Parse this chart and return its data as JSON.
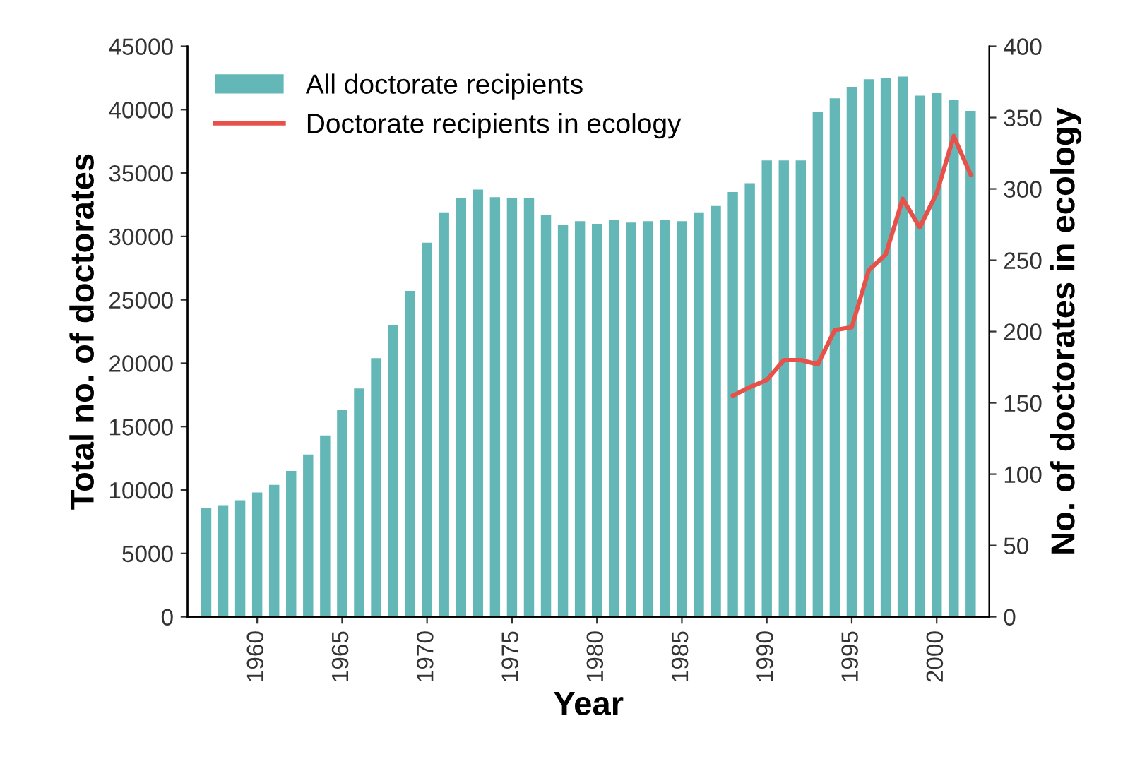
{
  "chart_data": {
    "type": "bar",
    "xlabel": "Year",
    "ylabel": "Total no. of doctorates",
    "y2label": "No. of doctorates in ecology",
    "x": [
      1957,
      1958,
      1959,
      1960,
      1961,
      1962,
      1963,
      1964,
      1965,
      1966,
      1967,
      1968,
      1969,
      1970,
      1971,
      1972,
      1973,
      1974,
      1975,
      1976,
      1977,
      1978,
      1979,
      1980,
      1981,
      1982,
      1983,
      1984,
      1985,
      1986,
      1987,
      1988,
      1989,
      1990,
      1991,
      1992,
      1993,
      1994,
      1995,
      1996,
      1997,
      1998,
      1999,
      2000,
      2001,
      2002
    ],
    "series": [
      {
        "name": "All doctorate recipients",
        "color": "#63b7b6",
        "values": [
          8600,
          8800,
          9200,
          9800,
          10400,
          11500,
          12800,
          14300,
          16300,
          18000,
          20400,
          23000,
          25700,
          29500,
          31900,
          33000,
          33700,
          33100,
          33000,
          33000,
          31700,
          30900,
          31200,
          31000,
          31300,
          31100,
          31200,
          31300,
          31200,
          31900,
          32400,
          33500,
          34200,
          36000,
          36000,
          36000,
          39800,
          40900,
          41800,
          42400,
          42500,
          42600,
          41100,
          41300,
          40800,
          39900
        ]
      },
      {
        "name": "Doctorate recipients in ecology",
        "type": "line",
        "axis": "y2",
        "color": "#e8504a",
        "x": [
          1988,
          1989,
          1990,
          1991,
          1992,
          1993,
          1994,
          1995,
          1996,
          1997,
          1998,
          1999,
          2000,
          2001,
          2002
        ],
        "values": [
          155,
          161,
          166,
          180,
          180,
          177,
          201,
          203,
          243,
          254,
          293,
          273,
          297,
          337,
          310
        ]
      }
    ],
    "xlim": [
      1955.9,
      2003.1
    ],
    "xticks": [
      1960,
      1965,
      1970,
      1975,
      1980,
      1985,
      1990,
      1995,
      2000
    ],
    "ylim": [
      0,
      45000
    ],
    "yticks": [
      0,
      5000,
      10000,
      15000,
      20000,
      25000,
      30000,
      35000,
      40000,
      45000
    ],
    "y2lim": [
      0,
      400
    ],
    "y2ticks": [
      0,
      50,
      100,
      150,
      200,
      250,
      300,
      350,
      400
    ],
    "legend": "top left",
    "grid": false,
    "line_style": "solid",
    "marker": "none"
  }
}
